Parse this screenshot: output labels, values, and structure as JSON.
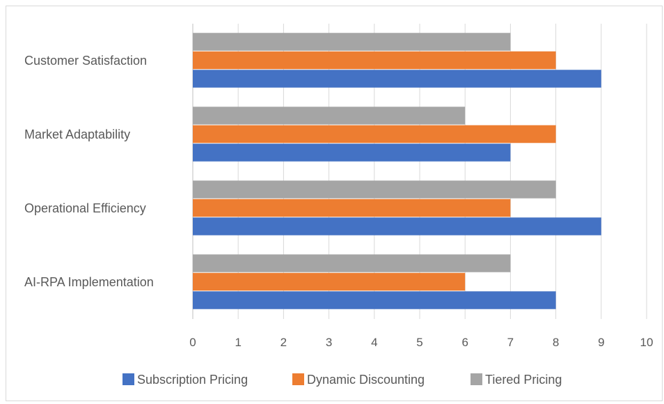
{
  "chart_data": {
    "type": "bar",
    "orientation": "horizontal",
    "categories": [
      "AI-RPA Implementation",
      "Operational Efficiency",
      "Market Adaptability",
      "Customer Satisfaction"
    ],
    "series": [
      {
        "name": "Subscription Pricing",
        "color": "#4472c4",
        "values": [
          8,
          9,
          7,
          9
        ]
      },
      {
        "name": "Dynamic Discounting",
        "color": "#ed7d31",
        "values": [
          6,
          7,
          8,
          8
        ]
      },
      {
        "name": "Tiered Pricing",
        "color": "#a5a5a5",
        "values": [
          7,
          8,
          6,
          7
        ]
      }
    ],
    "xlim": [
      0,
      10
    ],
    "xticks": [
      "0",
      "1",
      "2",
      "3",
      "4",
      "5",
      "6",
      "7",
      "8",
      "9",
      "10"
    ],
    "grid": true,
    "legend_position": "bottom"
  }
}
